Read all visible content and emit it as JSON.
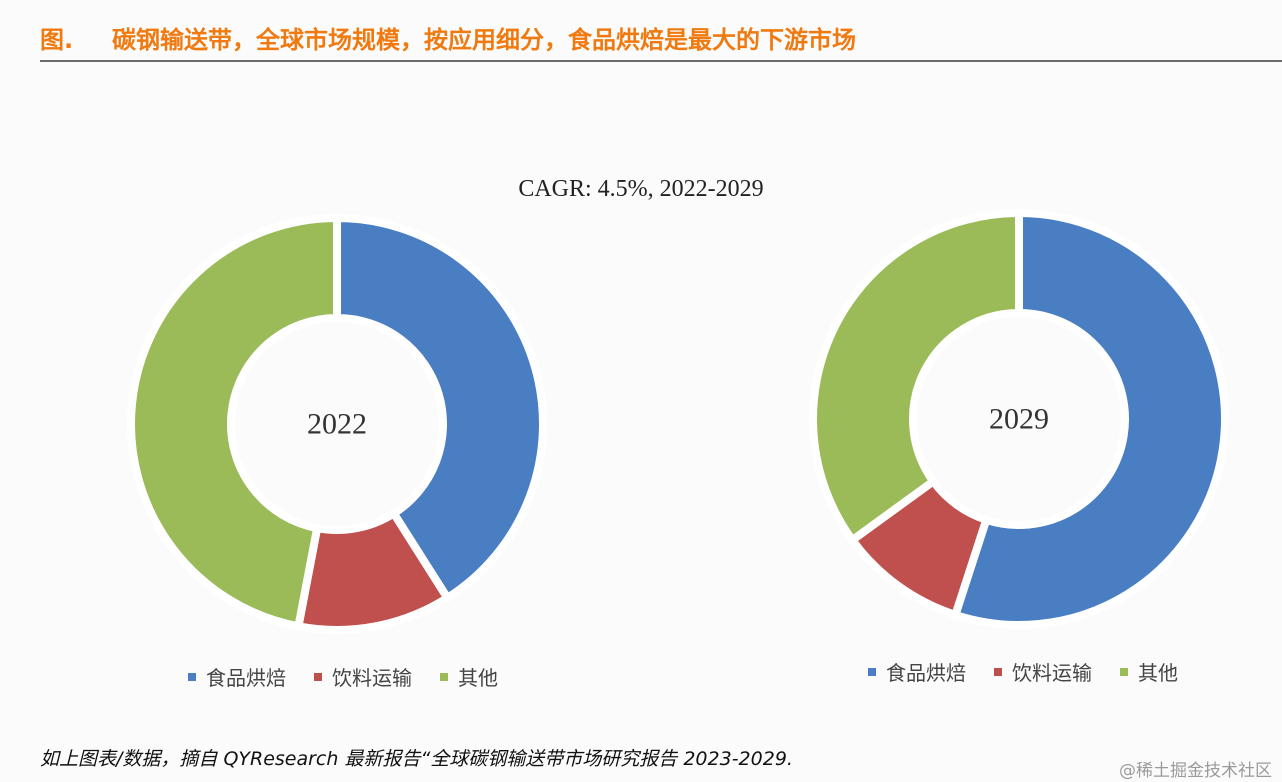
{
  "figure": {
    "label": "图.",
    "title": "碳钢输送带，全球市场规模，按应用细分，食品烘焙是最大的下游市场"
  },
  "chart_data": {
    "type": "pie",
    "title": "CAGR: 4.5%, 2022-2029",
    "categories": [
      "食品烘焙",
      "饮料运输",
      "其他"
    ],
    "colors": [
      "#4a7ec2",
      "#c0504d",
      "#9bbb59"
    ],
    "charts": [
      {
        "label": "2022",
        "values": [
          41,
          12,
          47
        ]
      },
      {
        "label": "2029",
        "values": [
          55,
          10,
          35
        ]
      }
    ]
  },
  "source": "如上图表/数据，摘自 QYResearch 最新报告“全球碳钢输送带市场研究报告 2023-2029.",
  "watermark": "@稀土掘金技术社区"
}
